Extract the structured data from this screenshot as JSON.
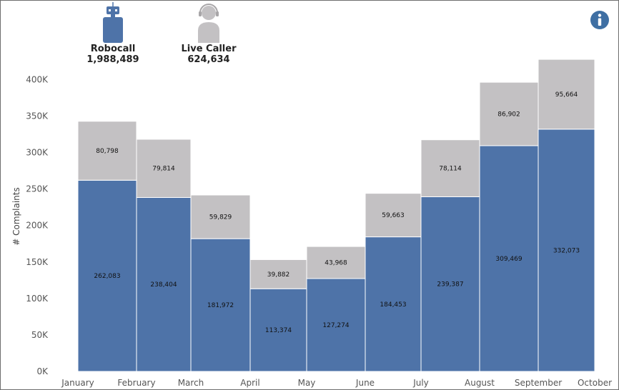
{
  "legend": {
    "robocall": {
      "name": "Robocall",
      "total": "1,988,489",
      "icon": "robot-icon",
      "color": "#4e73a8"
    },
    "live_caller": {
      "name": "Live Caller",
      "total": "624,634",
      "icon": "headset-person-icon",
      "color": "#c3c1c3"
    }
  },
  "info_icon": "info-icon",
  "chart_data": {
    "type": "bar",
    "stacked": true,
    "ylabel": "# Complaints",
    "ylim": [
      0,
      420000
    ],
    "yticks": [
      "0K",
      "50K",
      "100K",
      "150K",
      "200K",
      "250K",
      "300K",
      "350K",
      "400K"
    ],
    "ytick_values": [
      0,
      50000,
      100000,
      150000,
      200000,
      250000,
      300000,
      350000,
      400000
    ],
    "x_ticks": [
      "January",
      "February",
      "March",
      "April",
      "May",
      "June",
      "July",
      "August",
      "September",
      "October"
    ],
    "categories": [
      "January",
      "February",
      "March",
      "April",
      "May",
      "June",
      "July",
      "August",
      "September"
    ],
    "series": [
      {
        "name": "Robocall",
        "color": "#4e73a8",
        "values": [
          262083,
          238404,
          181972,
          113374,
          127274,
          184453,
          239387,
          309469,
          332073
        ],
        "labels": [
          "262,083",
          "238,404",
          "181,972",
          "113,374",
          "127,274",
          "184,453",
          "239,387",
          "309,469",
          "332,073"
        ]
      },
      {
        "name": "Live Caller",
        "color": "#c3c1c3",
        "values": [
          80798,
          79814,
          59829,
          39882,
          43968,
          59663,
          78114,
          86902,
          95664
        ],
        "labels": [
          "80,798",
          "79,814",
          "59,829",
          "39,882",
          "43,968",
          "59,663",
          "78,114",
          "86,902",
          "95,664"
        ]
      }
    ]
  }
}
